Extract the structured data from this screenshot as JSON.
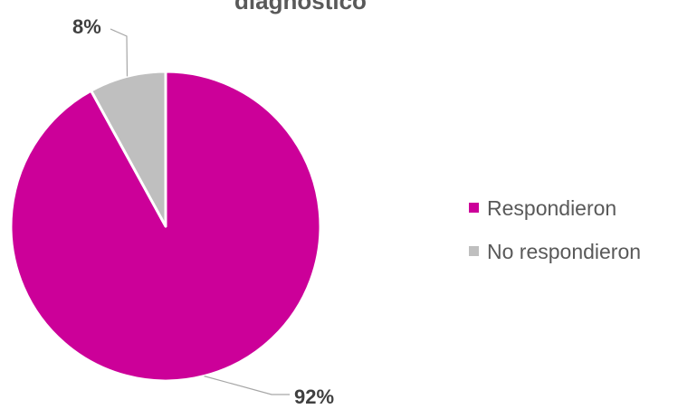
{
  "chart_data": {
    "type": "pie",
    "title": "diagnóstico",
    "categories": [
      "Respondieron",
      "No respondieron"
    ],
    "values": [
      92,
      8
    ],
    "data_labels": [
      "92%",
      "8%"
    ],
    "colors": [
      "#CC0099",
      "#BFBFBF"
    ],
    "legend": [
      "Respondieron",
      "No respondieron"
    ],
    "legend_position": "right"
  }
}
